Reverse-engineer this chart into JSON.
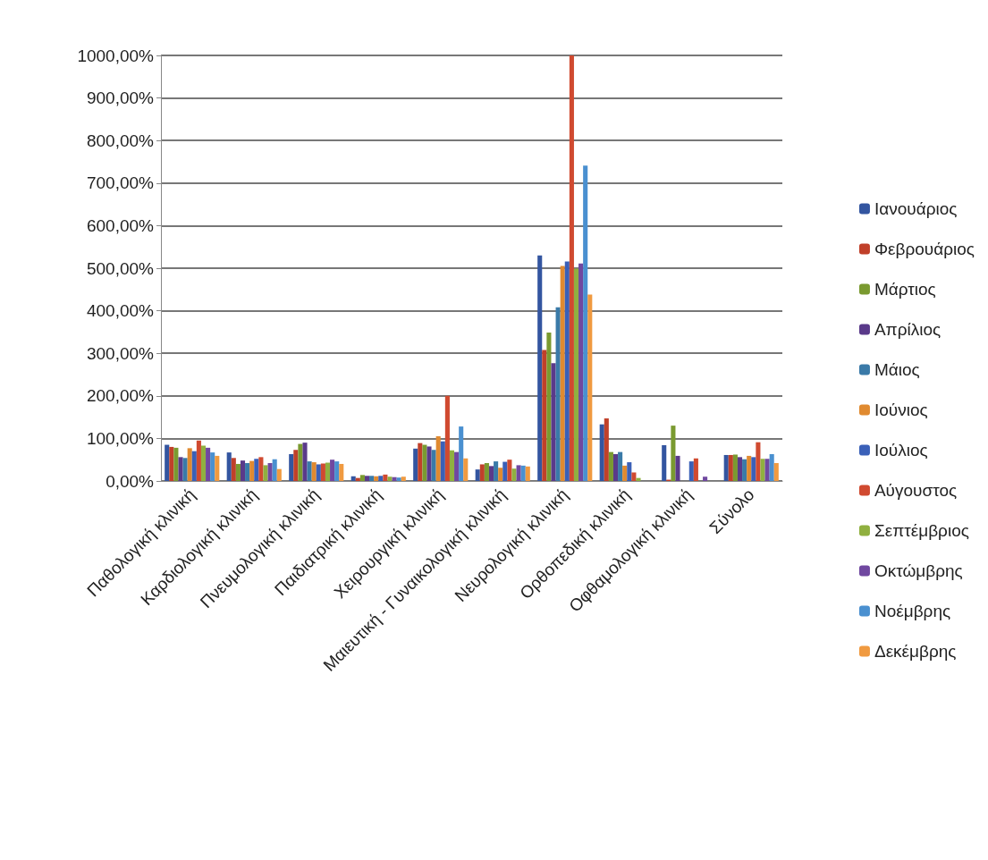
{
  "chart_data": {
    "type": "bar",
    "categories": [
      "Παθολογική κλινική",
      "Καρδιολογική κλινική",
      "Πνευμολογική κλινική",
      "Παιδιατρική κλινική",
      "Χειρουργική κλινική",
      "Μαιευτική - Γυναικολογική κλινική",
      "Νευρολογική κλινική",
      "Ορθοπεδική κλινική",
      "Οφθαμολογική κλινική",
      "Σύνολο"
    ],
    "series": [
      {
        "name": "Ιανουάριος",
        "color": "#3355a0",
        "values": [
          85,
          67,
          63,
          11,
          76,
          27,
          530,
          133,
          84,
          61
        ]
      },
      {
        "name": "Φεβρουάριος",
        "color": "#c0402a",
        "values": [
          80,
          54,
          73,
          7,
          89,
          39,
          308,
          147,
          3,
          61
        ]
      },
      {
        "name": "Μάρτιος",
        "color": "#7a9a30",
        "values": [
          78,
          40,
          87,
          14,
          85,
          42,
          349,
          68,
          130,
          62
        ]
      },
      {
        "name": "Απρίλιος",
        "color": "#5a3a8a",
        "values": [
          56,
          48,
          90,
          12,
          81,
          35,
          277,
          63,
          59,
          56
        ]
      },
      {
        "name": "Μάιος",
        "color": "#3a7aa8",
        "values": [
          54,
          42,
          46,
          12,
          73,
          46,
          408,
          68,
          0,
          51
        ]
      },
      {
        "name": "Ιούνιος",
        "color": "#e08a30",
        "values": [
          77,
          47,
          44,
          11,
          105,
          31,
          505,
          36,
          0,
          59
        ]
      },
      {
        "name": "Ιούλιος",
        "color": "#3a60b8",
        "values": [
          70,
          52,
          39,
          12,
          93,
          45,
          516,
          44,
          46,
          56
        ]
      },
      {
        "name": "Αύγουστος",
        "color": "#d04a30",
        "values": [
          95,
          56,
          41,
          15,
          200,
          50,
          1000,
          20,
          53,
          91
        ]
      },
      {
        "name": "Σεπτέμβριος",
        "color": "#90b040",
        "values": [
          83,
          37,
          43,
          10,
          72,
          29,
          499,
          7,
          0,
          52
        ]
      },
      {
        "name": "Οκτώμβρης",
        "color": "#7048a0",
        "values": [
          78,
          42,
          50,
          9,
          68,
          37,
          511,
          0,
          10,
          52
        ]
      },
      {
        "name": "Νοέμβρης",
        "color": "#4a90d0",
        "values": [
          67,
          51,
          46,
          8,
          128,
          36,
          741,
          0,
          0,
          63
        ]
      },
      {
        "name": "Δεκέμβρης",
        "color": "#f09a40",
        "values": [
          59,
          28,
          40,
          10,
          53,
          34,
          438,
          0,
          0,
          42
        ]
      }
    ],
    "ylim": [
      0,
      1000
    ],
    "yticks": [
      {
        "value": 0,
        "label": "0,00%"
      },
      {
        "value": 100,
        "label": "100,00%"
      },
      {
        "value": 200,
        "label": "200,00%"
      },
      {
        "value": 300,
        "label": "300,00%"
      },
      {
        "value": 400,
        "label": "400,00%"
      },
      {
        "value": 500,
        "label": "500,00%"
      },
      {
        "value": 600,
        "label": "600,00%"
      },
      {
        "value": 700,
        "label": "700,00%"
      },
      {
        "value": 800,
        "label": "800,00%"
      },
      {
        "value": 900,
        "label": "900,00%"
      },
      {
        "value": 1000,
        "label": "1000,00%"
      }
    ],
    "grid": "y",
    "legend": "right"
  }
}
